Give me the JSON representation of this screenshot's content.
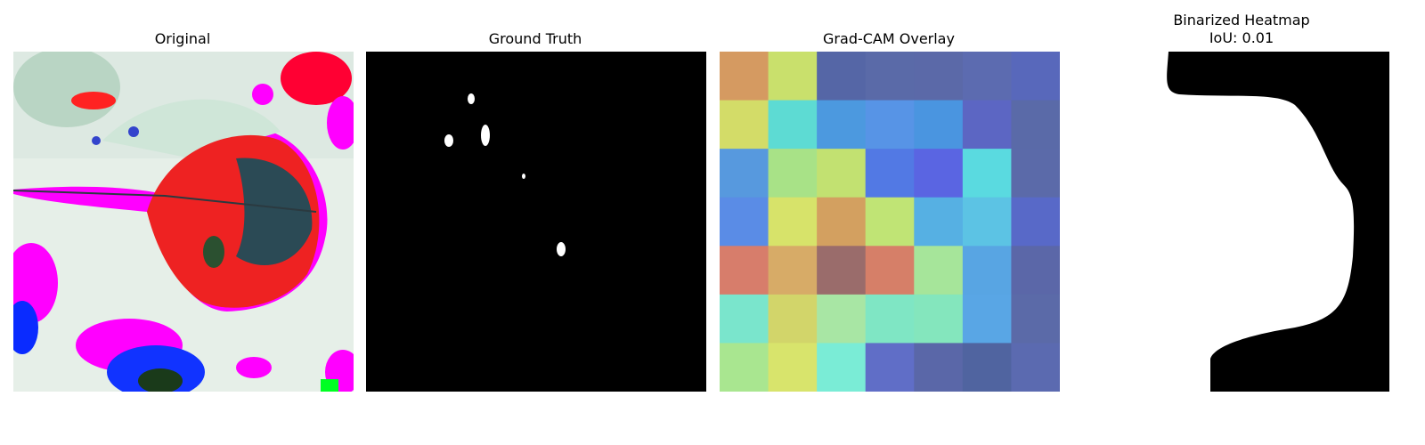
{
  "panels": [
    {
      "title": "Original"
    },
    {
      "title": "Ground Truth"
    },
    {
      "title": "Grad-CAM Overlay"
    },
    {
      "title_line1": "Binarized Heatmap",
      "title_line2": "IoU: 0.01"
    }
  ],
  "gradcam_grid": [
    [
      "#d59a61",
      "#c9e06c",
      "#5566a6",
      "#5a6aa8",
      "#5b69a8",
      "#5c6bb0",
      "#5868bb"
    ],
    [
      "#d3dc68",
      "#5ddbd3",
      "#4c99df",
      "#5794e6",
      "#4a95e0",
      "#5c66c3",
      "#5a6aa8"
    ],
    [
      "#5799de",
      "#a8e287",
      "#c2e171",
      "#5279e4",
      "#5a65e2",
      "#5adae0",
      "#5b6aa9"
    ],
    [
      "#5a8ce6",
      "#d7e36a",
      "#d3a060",
      "#c0e475",
      "#56b0e3",
      "#5cc3e4",
      "#5869c8"
    ],
    [
      "#d77d6b",
      "#d7ab67",
      "#9a6c6b",
      "#d67f68",
      "#a6e59a",
      "#58a5e3",
      "#5b67a8"
    ],
    [
      "#7ae5cc",
      "#d2d56a",
      "#a8e6a4",
      "#7fe6c4",
      "#84e6bd",
      "#59a6e5",
      "#5b6aa8"
    ],
    [
      "#a9e690",
      "#d8e46c",
      "#7aecd6",
      "#606ec7",
      "#5a67a8",
      "#5064a0",
      "#5b6ab0"
    ]
  ],
  "colors": {
    "background": "#ffffff",
    "mask_fg": "#ffffff",
    "mask_bg": "#000000"
  }
}
